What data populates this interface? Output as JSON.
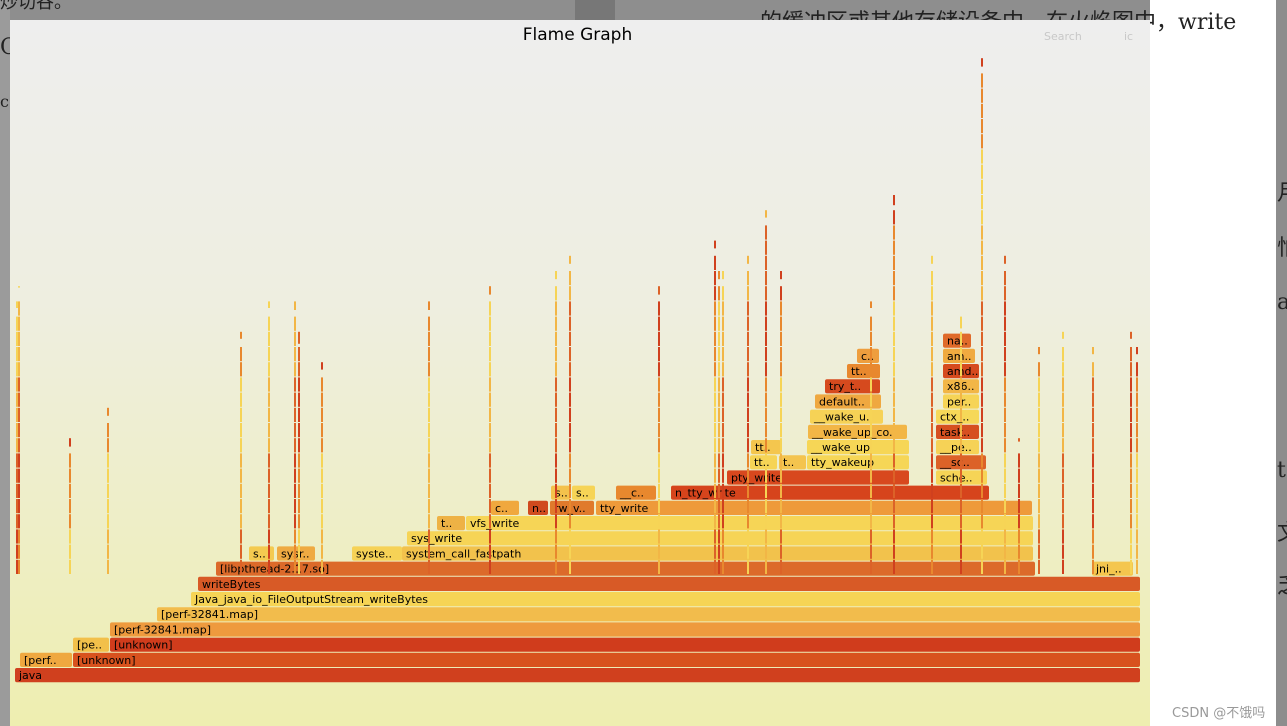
{
  "header": {
    "title": "Flame Graph",
    "search_label": "Search",
    "ic_label": "ic"
  },
  "background": {
    "top_text": "的缓冲区或其他存储设备中。在火焰图中，write",
    "left_fragments": [
      "炒切谷。",
      "C",
      "c"
    ],
    "right_fragments": [
      "月",
      "怕",
      "a",
      "t",
      "文",
      "乏"
    ]
  },
  "watermark": "CSDN @不饿吗",
  "flame_frames": [
    {
      "label": "java",
      "color": "#d0401e"
    },
    {
      "label": "[perf..",
      "color": "#efa840"
    },
    {
      "label": "[unknown]",
      "color": "#d8521e"
    },
    {
      "label": "[pe..",
      "color": "#f2c04a"
    },
    {
      "label": "[unknown]",
      "color": "#d03c1c"
    },
    {
      "label": "[perf-32841.map]",
      "color": "#ee9a3e"
    },
    {
      "label": "[perf-32841.map]",
      "color": "#f2bc4c"
    },
    {
      "label": "Java_java_io_FileOutputStream_writeBytes",
      "color": "#f6d455"
    },
    {
      "label": "writeBytes",
      "color": "#d85a26"
    },
    {
      "label": "[libpthread-2.17.so]",
      "color": "#dc6a2a"
    },
    {
      "label": "s..",
      "color": "#f4ca50"
    },
    {
      "label": "sysr..",
      "color": "#efaa42"
    },
    {
      "label": "syste..",
      "color": "#f6d256"
    },
    {
      "label": "system_call_fastpath",
      "color": "#f2c24c"
    },
    {
      "label": "sys_write",
      "color": "#f6d456"
    },
    {
      "label": "t..",
      "color": "#eeb245"
    },
    {
      "label": "vfs_write",
      "color": "#f6d556"
    },
    {
      "label": "c..",
      "color": "#f0a83e"
    },
    {
      "label": "n..",
      "color": "#d04a1e"
    },
    {
      "label": "rw_v..",
      "color": "#e07a2c"
    },
    {
      "label": "tty_write",
      "color": "#ee9a3a"
    },
    {
      "label": "s..",
      "color": "#f4c24c"
    },
    {
      "label": "s..",
      "color": "#f6d456"
    },
    {
      "label": "__c..",
      "color": "#e8882e"
    },
    {
      "label": "n_tty_write",
      "color": "#d6441c"
    },
    {
      "label": "pty_write",
      "color": "#d8481e"
    },
    {
      "label": "tt..",
      "color": "#f6d456"
    },
    {
      "label": "t..",
      "color": "#f4c44e"
    },
    {
      "label": "tty_wakeup",
      "color": "#f6d656"
    },
    {
      "label": "tt..",
      "color": "#f4c64e"
    },
    {
      "label": "__wake_up",
      "color": "#f6d656"
    },
    {
      "label": "__wake_up_co..",
      "color": "#f2b646"
    },
    {
      "label": "__wake_u..",
      "color": "#f6d256"
    },
    {
      "label": "default..",
      "color": "#efa840"
    },
    {
      "label": "try_t..",
      "color": "#d64a1e"
    },
    {
      "label": "tt..",
      "color": "#e8882e"
    },
    {
      "label": "c..",
      "color": "#ee9e3e"
    },
    {
      "label": "sche..",
      "color": "#f6d456"
    },
    {
      "label": "__sc..",
      "color": "#dc6228"
    },
    {
      "label": "__pe..",
      "color": "#f6d256"
    },
    {
      "label": "task..",
      "color": "#d65020"
    },
    {
      "label": "ctx_..",
      "color": "#f6d858"
    },
    {
      "label": "per..",
      "color": "#f6d456"
    },
    {
      "label": "x86..",
      "color": "#f2b646"
    },
    {
      "label": "amd..",
      "color": "#d64a1e"
    },
    {
      "label": "am..",
      "color": "#f0aa40"
    },
    {
      "label": "na..",
      "color": "#e06a2a"
    },
    {
      "label": "jni_..",
      "color": "#f4c64e"
    }
  ]
}
